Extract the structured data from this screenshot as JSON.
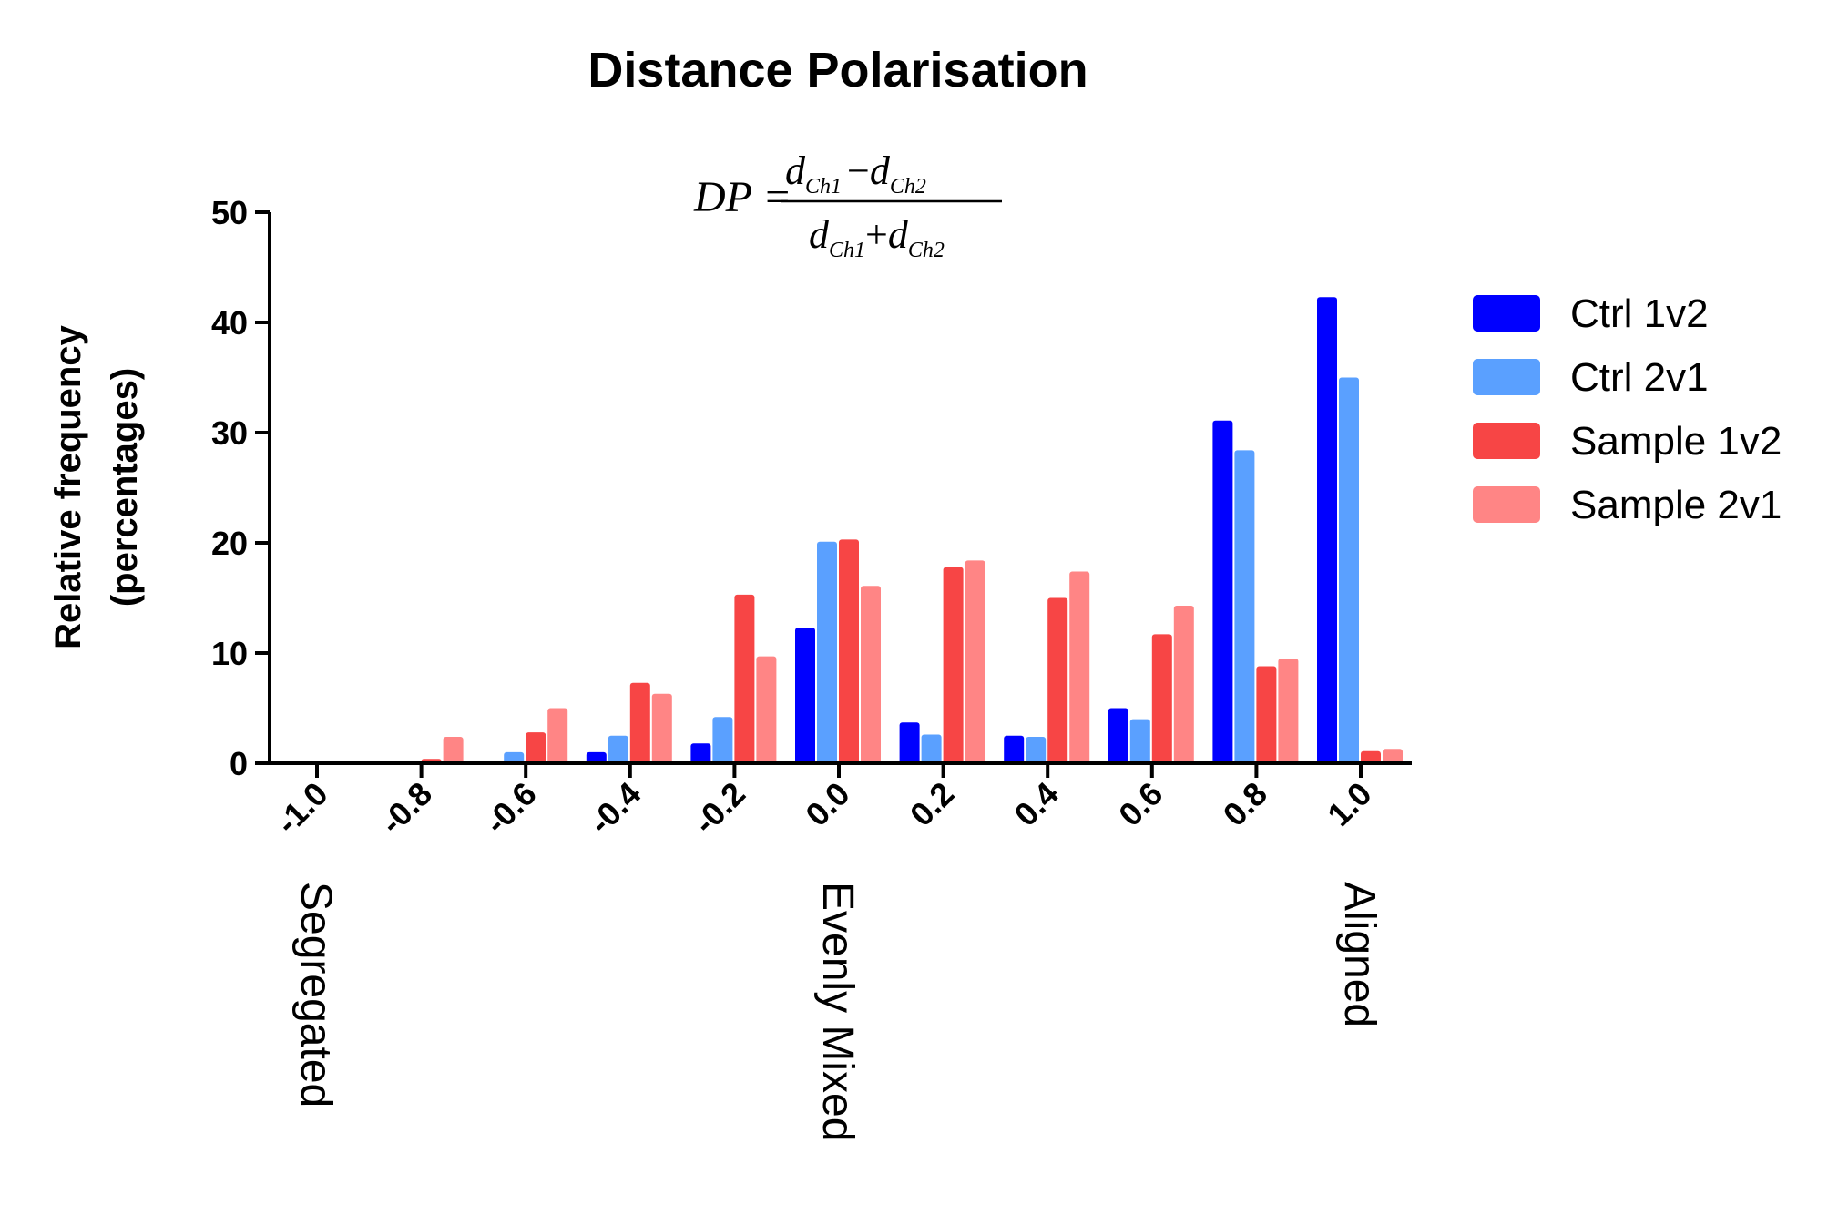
{
  "chart_data": {
    "type": "bar",
    "title": "Distance  Polarisation",
    "formula": {
      "lhs": "DP =",
      "numerator": {
        "a": "d",
        "a_sub": "Ch1",
        "op": "−",
        "b": "d",
        "b_sub": "Ch2"
      },
      "denominator": {
        "a": "d",
        "a_sub": "Ch1",
        "op": "+",
        "b": "d",
        "b_sub": "Ch2"
      }
    },
    "ylabel": [
      "Relative frequency",
      "(percentages)"
    ],
    "xlabel": "",
    "ylim": [
      0,
      50
    ],
    "yticks": [
      "0",
      "10",
      "20",
      "30",
      "40",
      "50"
    ],
    "categories": [
      "-1.0",
      "-0.8",
      "-0.6",
      "-0.4",
      "-0.2",
      "0.0",
      "0.2",
      "0.4",
      "0.6",
      "0.8",
      "1.0"
    ],
    "annotations": [
      {
        "text": "Segregated",
        "at": "-1.0"
      },
      {
        "text": "Evenly Mixed",
        "at": "0.0"
      },
      {
        "text": "Aligned",
        "at": "1.0"
      }
    ],
    "legend_position": "right",
    "series": [
      {
        "name": "Ctrl 1v2",
        "color": "#0000ff",
        "values": [
          0,
          0.2,
          0.2,
          1.0,
          1.8,
          12.3,
          3.7,
          2.5,
          5.0,
          31.1,
          42.3
        ]
      },
      {
        "name": "Ctrl 2v1",
        "color": "#5aa0ff",
        "values": [
          0,
          0.2,
          1.0,
          2.5,
          4.2,
          20.1,
          2.6,
          2.4,
          4.0,
          28.4,
          35.0
        ]
      },
      {
        "name": "Sample 1v2",
        "color": "#f74545",
        "values": [
          0.1,
          0.4,
          2.8,
          7.3,
          15.3,
          20.3,
          17.8,
          15.0,
          11.7,
          8.8,
          1.1
        ]
      },
      {
        "name": "Sample 2v1",
        "color": "#ff8585",
        "values": [
          0.1,
          2.4,
          5.0,
          6.3,
          9.7,
          16.1,
          18.4,
          17.4,
          14.3,
          9.5,
          1.3
        ]
      }
    ]
  }
}
